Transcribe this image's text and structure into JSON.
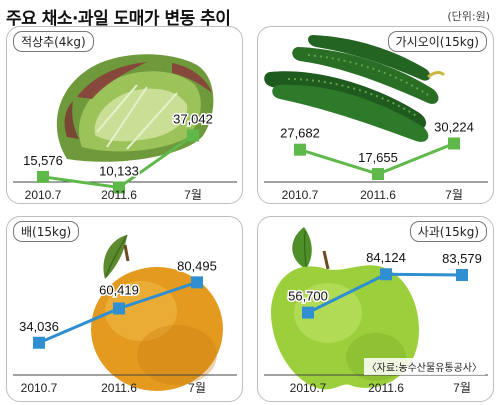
{
  "title": "주요 채소·과일 도매가 변동 추이",
  "unit": "(단위:원)",
  "source": "〈자료:농수산물유통공사〉",
  "colors": {
    "green": "#5fb84a",
    "blue": "#2f8fd0",
    "axis": "#444444"
  },
  "chart_data": [
    {
      "type": "line",
      "label": "적상추(4kg)",
      "color": "#5fb84a",
      "image": "red-leaf-lettuce",
      "categories": [
        "2010.7",
        "2011.6",
        "7월"
      ],
      "values": [
        15576,
        10133,
        37042
      ],
      "value_labels": [
        "15,576",
        "10,133",
        "37,042"
      ]
    },
    {
      "type": "line",
      "label": "가시오이(15kg)",
      "color": "#5fb84a",
      "image": "cucumbers",
      "categories": [
        "2010.7",
        "2011.6",
        "7월"
      ],
      "values": [
        27682,
        17655,
        30224
      ],
      "value_labels": [
        "27,682",
        "17,655",
        "30,224"
      ]
    },
    {
      "type": "line",
      "label": "배(15kg)",
      "color": "#2f8fd0",
      "image": "asian-pear",
      "categories": [
        "2010.7",
        "2011.6",
        "7월"
      ],
      "values": [
        34036,
        60419,
        80495
      ],
      "value_labels": [
        "34,036",
        "60,419",
        "80,495"
      ]
    },
    {
      "type": "line",
      "label": "사과(15kg)",
      "color": "#2f8fd0",
      "image": "green-apple",
      "categories": [
        "2010.7",
        "2011.6",
        "7월"
      ],
      "values": [
        56700,
        84124,
        83579
      ],
      "value_labels": [
        "56,700",
        "84,124",
        "83,579"
      ]
    }
  ]
}
